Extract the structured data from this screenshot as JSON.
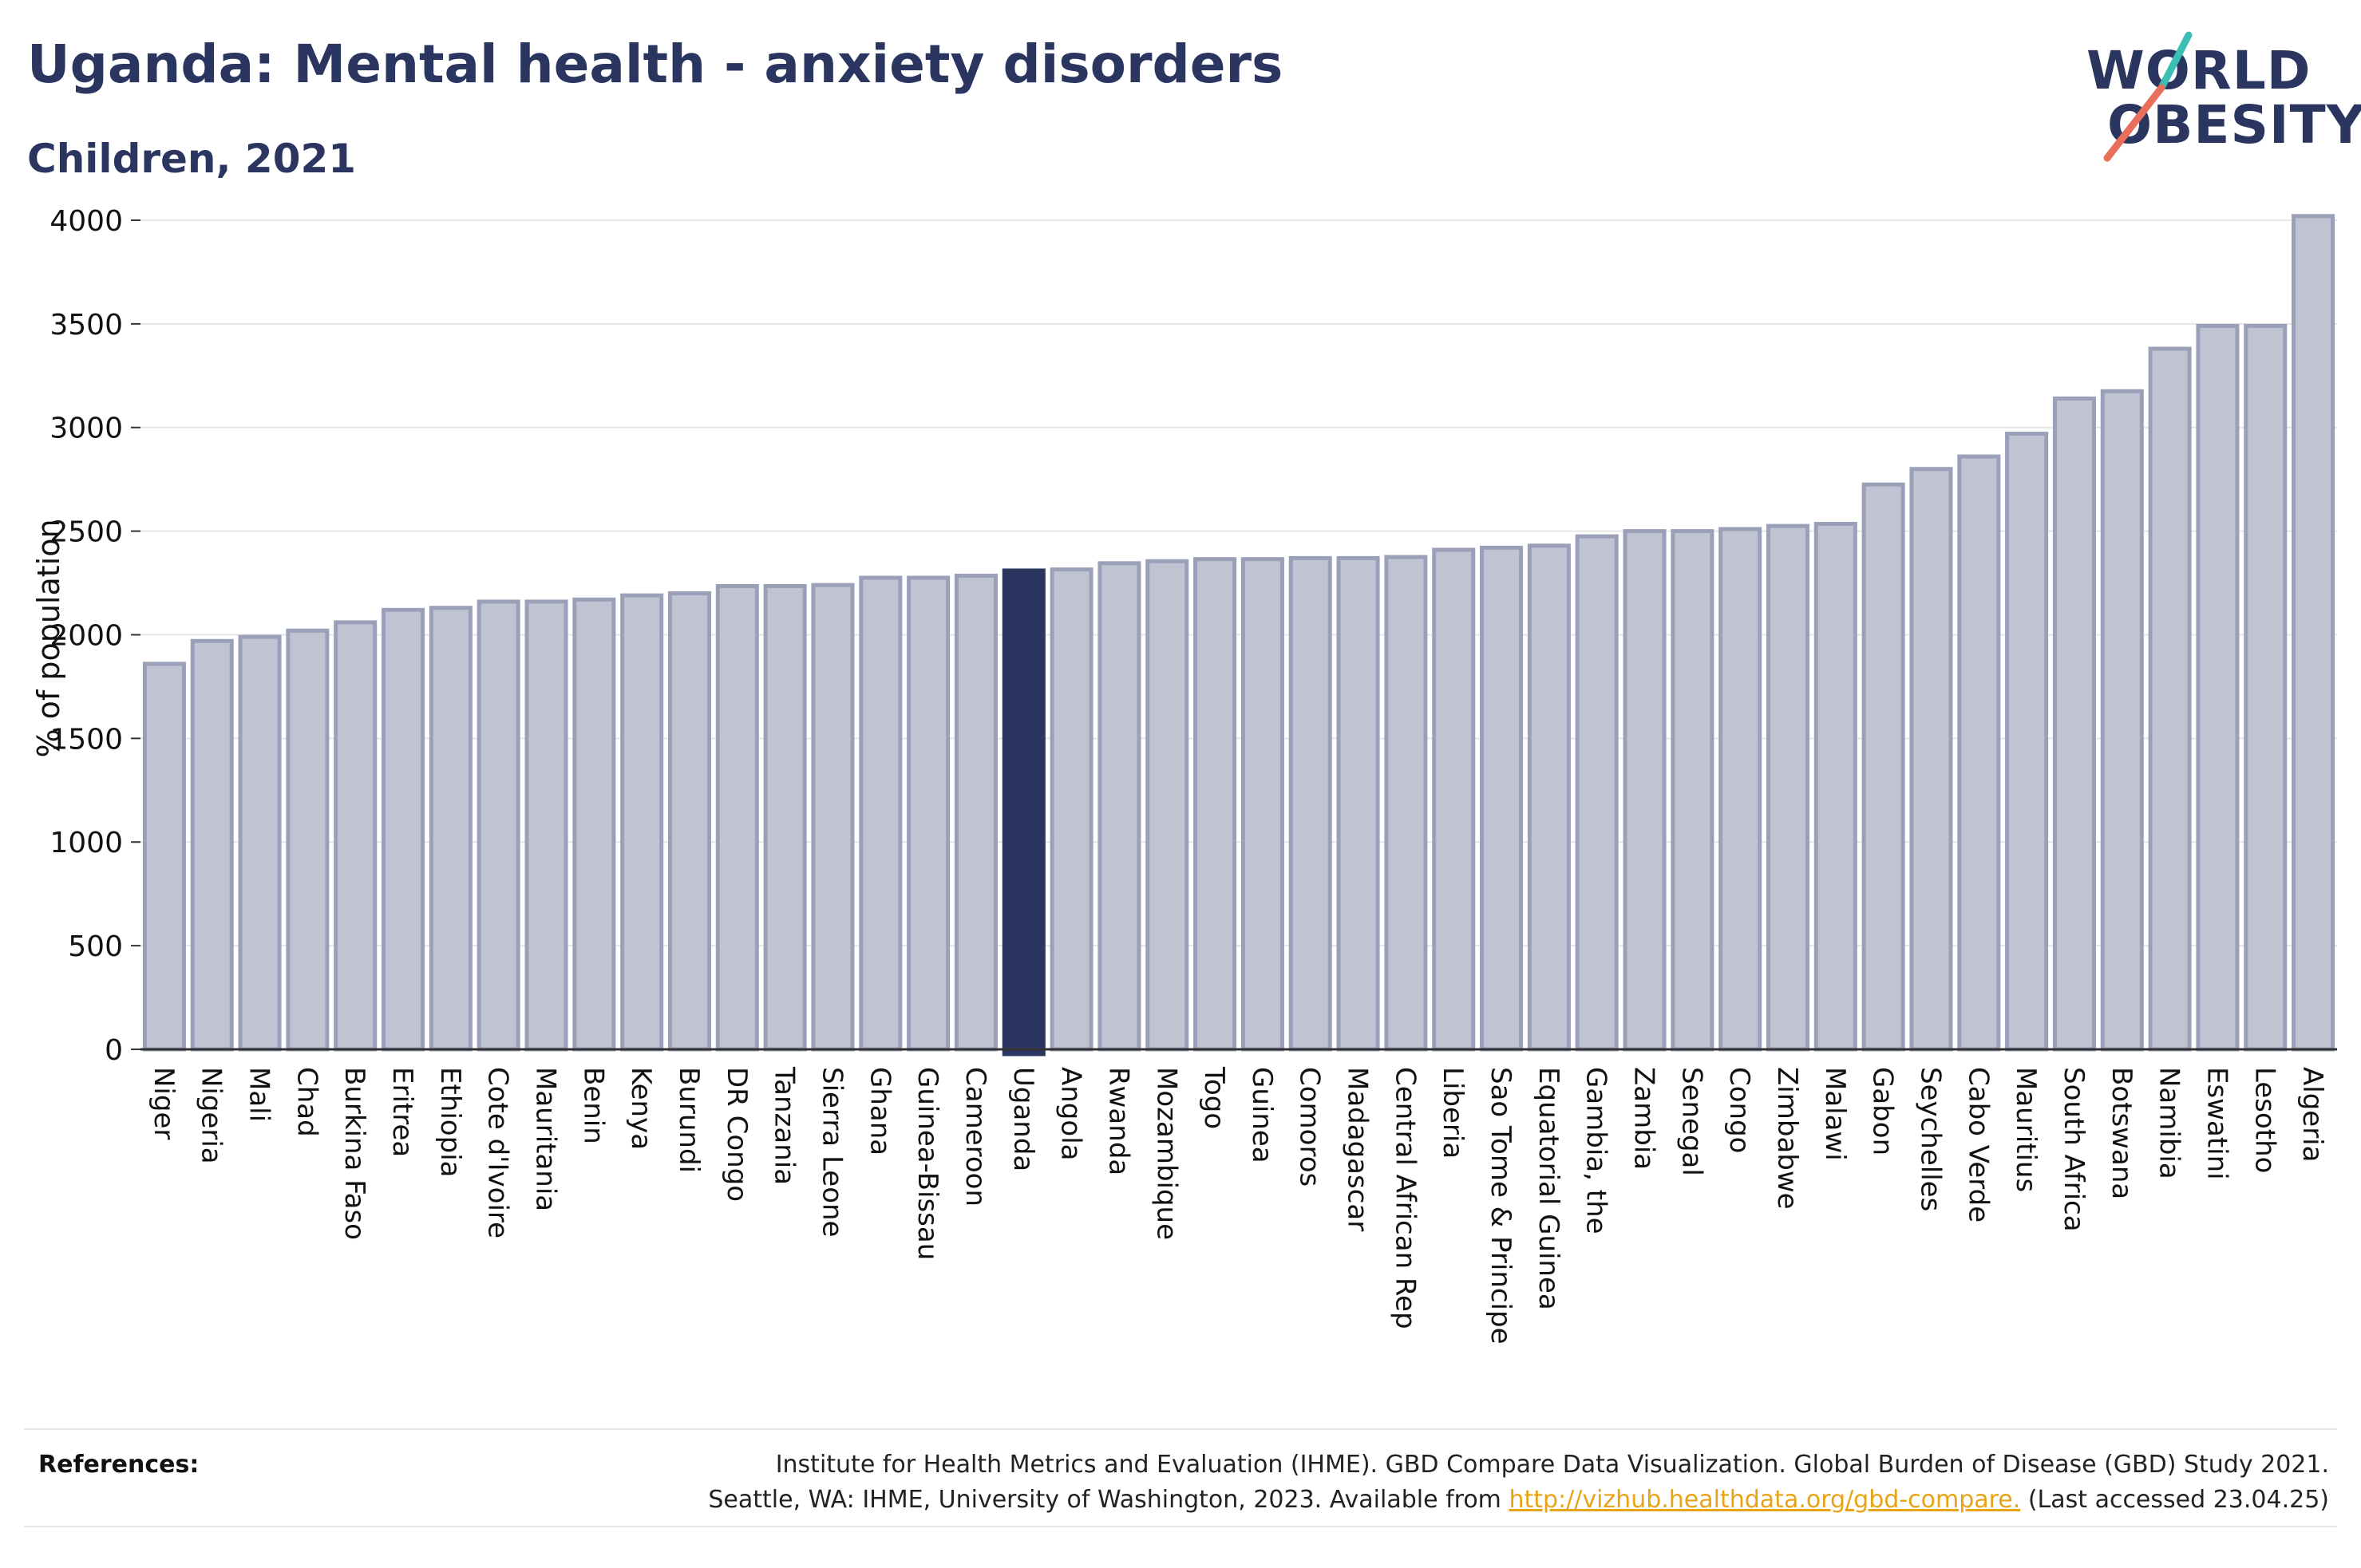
{
  "header": {
    "title": "Uganda: Mental health - anxiety disorders",
    "subtitle": "Children, 2021"
  },
  "logo": {
    "line1": "WORLD",
    "line2": "OBESITY"
  },
  "colors": {
    "title": "#2a3560",
    "bar_fill": "#c0c4d2",
    "bar_stroke": "#9aa0b8",
    "highlight": "#2a3560",
    "logo_teal": "#3bbfb5",
    "logo_coral": "#e8705a",
    "link": "#e8a317"
  },
  "chart_data": {
    "type": "bar",
    "ylabel": "% of population",
    "ylim": [
      0,
      4100
    ],
    "yticks": [
      0,
      500,
      1000,
      1500,
      2000,
      2500,
      3000,
      3500,
      4000
    ],
    "grid": true,
    "highlight": "Uganda",
    "categories": [
      "Niger",
      "Nigeria",
      "Mali",
      "Chad",
      "Burkina Faso",
      "Eritrea",
      "Ethiopia",
      "Cote d'Ivoire",
      "Mauritania",
      "Benin",
      "Kenya",
      "Burundi",
      "DR Congo",
      "Tanzania",
      "Sierra Leone",
      "Ghana",
      "Guinea-Bissau",
      "Cameroon",
      "Uganda",
      "Angola",
      "Rwanda",
      "Mozambique",
      "Togo",
      "Guinea",
      "Comoros",
      "Madagascar",
      "Central African Rep",
      "Liberia",
      "Sao Tome & Principe",
      "Equatorial Guinea",
      "Gambia, the",
      "Zambia",
      "Senegal",
      "Congo",
      "Zimbabwe",
      "Malawi",
      "Gabon",
      "Seychelles",
      "Cabo Verde",
      "Mauritius",
      "South Africa",
      "Botswana",
      "Namibia",
      "Eswatini",
      "Lesotho",
      "Algeria"
    ],
    "values": [
      1860,
      1970,
      1990,
      2020,
      2060,
      2120,
      2130,
      2160,
      2160,
      2170,
      2190,
      2200,
      2235,
      2235,
      2240,
      2275,
      2275,
      2285,
      2310,
      2315,
      2345,
      2355,
      2365,
      2365,
      2370,
      2370,
      2375,
      2410,
      2420,
      2430,
      2475,
      2500,
      2500,
      2510,
      2525,
      2535,
      2725,
      2800,
      2860,
      2970,
      3140,
      3175,
      3380,
      3490,
      3490,
      4020
    ]
  },
  "references": {
    "label": "References:",
    "line1": "Institute for Health Metrics and Evaluation (IHME). GBD Compare Data Visualization. Global Burden of Disease (GBD) Study 2021.",
    "line2_prefix": "Seattle, WA: IHME, University of Washington, 2023. Available from ",
    "link": "http://vizhub.healthdata.org/gbd-compare.",
    "line2_suffix": " (Last accessed 23.04.25)"
  }
}
